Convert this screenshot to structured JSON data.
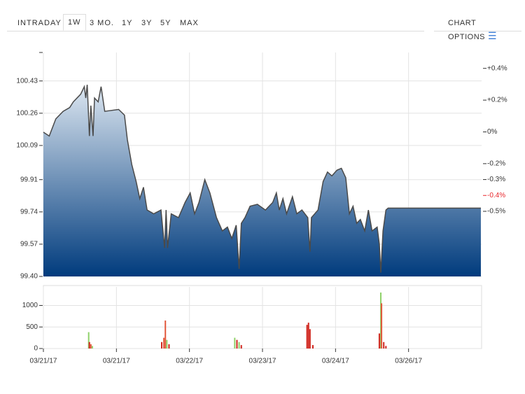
{
  "tabs": [
    "INTRADAY",
    "1W",
    "3 MO.",
    "1Y",
    "3Y",
    "5Y",
    "MAX"
  ],
  "active_tab": 1,
  "chart_options": "CHART OPTIONS",
  "chart_data": [
    {
      "type": "area",
      "color": "#4a4a4a",
      "fill_top": "#dde7f1",
      "fill_bottom": "#003b7d",
      "grid": true,
      "x": [
        0,
        0.08,
        0.17,
        0.27,
        0.36,
        0.41,
        0.51,
        0.56,
        0.58,
        0.6,
        0.63,
        0.65,
        0.68,
        0.7,
        0.75,
        0.79,
        0.84,
        1.03,
        1.11,
        1.15,
        1.21,
        1.27,
        1.32,
        1.37,
        1.42,
        1.51,
        1.61,
        1.66,
        1.68,
        1.7,
        1.75,
        1.85,
        1.94,
        2.01,
        2.07,
        2.13,
        2.21,
        2.28,
        2.37,
        2.45,
        2.52,
        2.58,
        2.64,
        2.68,
        2.71,
        2.76,
        2.83,
        2.93,
        3.04,
        3.14,
        3.19,
        3.23,
        3.28,
        3.33,
        3.41,
        3.47,
        3.54,
        3.62,
        3.65,
        3.67,
        3.76,
        3.83,
        3.89,
        3.95,
        4.02,
        4.08,
        4.14,
        4.19,
        4.24,
        4.29,
        4.34,
        4.4,
        4.45,
        4.5,
        4.57,
        4.6,
        4.62,
        4.65,
        4.69,
        4.72,
        5.99
      ],
      "values": [
        100.16,
        100.14,
        100.23,
        100.27,
        100.29,
        100.32,
        100.36,
        100.4,
        100.34,
        100.41,
        100.14,
        100.3,
        100.14,
        100.34,
        100.32,
        100.4,
        100.27,
        100.28,
        100.25,
        100.12,
        99.99,
        99.9,
        99.81,
        99.87,
        99.75,
        99.73,
        99.75,
        99.55,
        99.75,
        99.55,
        99.73,
        99.71,
        99.79,
        99.84,
        99.73,
        99.79,
        99.91,
        99.84,
        99.71,
        99.64,
        99.66,
        99.6,
        99.67,
        99.44,
        99.68,
        99.71,
        99.77,
        99.78,
        99.75,
        99.79,
        99.84,
        99.75,
        99.81,
        99.73,
        99.82,
        99.73,
        99.75,
        99.71,
        99.53,
        99.71,
        99.75,
        99.9,
        99.95,
        99.93,
        99.96,
        99.97,
        99.92,
        99.73,
        99.77,
        99.68,
        99.7,
        99.64,
        99.75,
        99.64,
        99.66,
        99.57,
        99.42,
        99.64,
        99.75,
        99.76,
        99.76
      ],
      "xlim": [
        0,
        6
      ],
      "ylim": [
        99.4,
        100.58
      ],
      "yticks": [
        {
          "value": 99.4,
          "label": "99.40"
        },
        99.57,
        99.74,
        99.91,
        100.09,
        100.26,
        100.43
      ],
      "y2lim": [
        -0.91,
        0.5
      ],
      "y2ticks": [
        {
          "value": 0.4,
          "label": "+0.4%"
        },
        {
          "value": 0.2,
          "label": "+0.2%"
        },
        {
          "value": 0,
          "label": "0%"
        },
        {
          "value": -0.2,
          "label": "-0.2%"
        },
        {
          "value": -0.3,
          "label": "-0.3%"
        },
        {
          "value": -0.5,
          "label": "-0.5%"
        }
      ],
      "last_change": {
        "value": -0.4,
        "label": "-0.4%",
        "color": "#e8262b"
      }
    },
    {
      "type": "bar",
      "grid": true,
      "x": [
        0.62,
        0.63,
        0.65,
        0.67,
        1.62,
        1.65,
        1.67,
        1.69,
        1.72,
        2.62,
        2.65,
        2.68,
        2.71,
        3.61,
        3.63,
        3.65,
        3.69,
        4.6,
        4.62,
        4.63,
        4.66,
        4.69
      ],
      "values": [
        380,
        150,
        100,
        60,
        150,
        250,
        650,
        200,
        100,
        250,
        200,
        150,
        80,
        550,
        600,
        450,
        80,
        350,
        1300,
        1050,
        150,
        60
      ],
      "colors": [
        "#8fd16a",
        "#d0261e",
        "#e2583c",
        "#8fd16a",
        "#d0261e",
        "#e2583c",
        "#e2583c",
        "#8fd16a",
        "#d0261e",
        "#8fd16a",
        "#d0261e",
        "#8fd16a",
        "#d0261e",
        "#d0261e",
        "#d0261e",
        "#d0261e",
        "#d0261e",
        "#d0261e",
        "#8fd16a",
        "#e2583c",
        "#d0261e",
        "#d0261e"
      ],
      "xlim": [
        0,
        6
      ],
      "ylim": [
        0,
        1430
      ],
      "yticks": [
        0,
        500,
        1000
      ],
      "xticks": [
        {
          "value": 0,
          "label": "03/21/17"
        },
        {
          "value": 1,
          "label": "03/21/17"
        },
        {
          "value": 2,
          "label": "03/22/17"
        },
        {
          "value": 3,
          "label": "03/23/17"
        },
        {
          "value": 4,
          "label": "03/24/17"
        },
        {
          "value": 5,
          "label": "03/26/17"
        }
      ]
    }
  ]
}
